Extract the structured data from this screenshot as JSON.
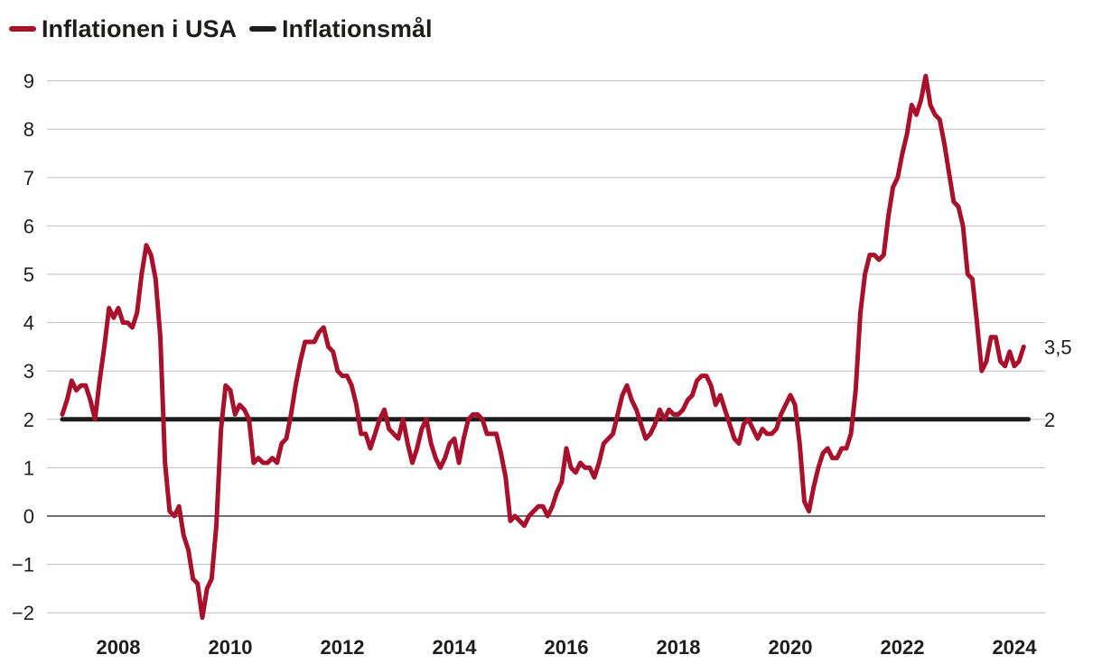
{
  "chart_data": {
    "type": "line",
    "title": "",
    "xlabel": "",
    "ylabel": "",
    "ylim": [
      -2.2,
      9.5
    ],
    "xlim": [
      2006.8,
      2024.45
    ],
    "yticks": [
      9,
      8,
      7,
      6,
      5,
      4,
      3,
      2,
      1,
      0,
      -1,
      -2
    ],
    "ytick_labels": [
      "9",
      "8",
      "7",
      "6",
      "5",
      "4",
      "3",
      "2",
      "1",
      "0",
      "−1",
      "−2"
    ],
    "xticks": [
      2008,
      2010,
      2012,
      2014,
      2016,
      2018,
      2020,
      2022,
      2024
    ],
    "xtick_labels": [
      "2008",
      "2010",
      "2012",
      "2014",
      "2016",
      "2018",
      "2020",
      "2022",
      "2024"
    ],
    "grid": true,
    "legend_placement": "top-left",
    "series": [
      {
        "name": "Inflationen i USA",
        "color": "#a8102c",
        "start_year": 2007.0,
        "step": 0.08333,
        "end_label": "3,5",
        "values": [
          2.1,
          2.4,
          2.8,
          2.6,
          2.7,
          2.7,
          2.4,
          2.0,
          2.8,
          3.5,
          4.3,
          4.1,
          4.3,
          4.0,
          4.0,
          3.9,
          4.2,
          5.0,
          5.6,
          5.4,
          4.9,
          3.7,
          1.1,
          0.1,
          0.0,
          0.2,
          -0.4,
          -0.7,
          -1.3,
          -1.4,
          -2.1,
          -1.5,
          -1.3,
          -0.2,
          1.8,
          2.7,
          2.6,
          2.1,
          2.3,
          2.2,
          2.0,
          1.1,
          1.2,
          1.1,
          1.1,
          1.2,
          1.1,
          1.5,
          1.6,
          2.1,
          2.7,
          3.2,
          3.6,
          3.6,
          3.6,
          3.8,
          3.9,
          3.5,
          3.4,
          3.0,
          2.9,
          2.9,
          2.7,
          2.3,
          1.7,
          1.7,
          1.4,
          1.7,
          2.0,
          2.2,
          1.8,
          1.7,
          1.6,
          2.0,
          1.5,
          1.1,
          1.4,
          1.8,
          2.0,
          1.5,
          1.2,
          1.0,
          1.2,
          1.5,
          1.6,
          1.1,
          1.6,
          2.0,
          2.1,
          2.1,
          2.0,
          1.7,
          1.7,
          1.7,
          1.3,
          0.8,
          -0.1,
          0.0,
          -0.1,
          -0.2,
          0.0,
          0.1,
          0.2,
          0.2,
          0.0,
          0.2,
          0.5,
          0.7,
          1.4,
          1.0,
          0.9,
          1.1,
          1.0,
          1.0,
          0.8,
          1.1,
          1.5,
          1.6,
          1.7,
          2.1,
          2.5,
          2.7,
          2.4,
          2.2,
          1.9,
          1.6,
          1.7,
          1.9,
          2.2,
          2.0,
          2.2,
          2.1,
          2.1,
          2.2,
          2.4,
          2.5,
          2.8,
          2.9,
          2.9,
          2.7,
          2.3,
          2.5,
          2.2,
          1.9,
          1.6,
          1.5,
          1.9,
          2.0,
          1.8,
          1.6,
          1.8,
          1.7,
          1.7,
          1.8,
          2.1,
          2.3,
          2.5,
          2.3,
          1.5,
          0.3,
          0.1,
          0.6,
          1.0,
          1.3,
          1.4,
          1.2,
          1.2,
          1.4,
          1.4,
          1.7,
          2.6,
          4.2,
          5.0,
          5.4,
          5.4,
          5.3,
          5.4,
          6.2,
          6.8,
          7.0,
          7.5,
          7.9,
          8.5,
          8.3,
          8.6,
          9.1,
          8.5,
          8.3,
          8.2,
          7.7,
          7.1,
          6.5,
          6.4,
          6.0,
          5.0,
          4.9,
          4.0,
          3.0,
          3.2,
          3.7,
          3.7,
          3.2,
          3.1,
          3.4,
          3.1,
          3.2,
          3.5
        ]
      },
      {
        "name": "Inflationsmål",
        "color": "#1d1d1b",
        "start_year": 2007.0,
        "end_year": 2024.25,
        "value": 2,
        "end_label": "2"
      }
    ]
  }
}
